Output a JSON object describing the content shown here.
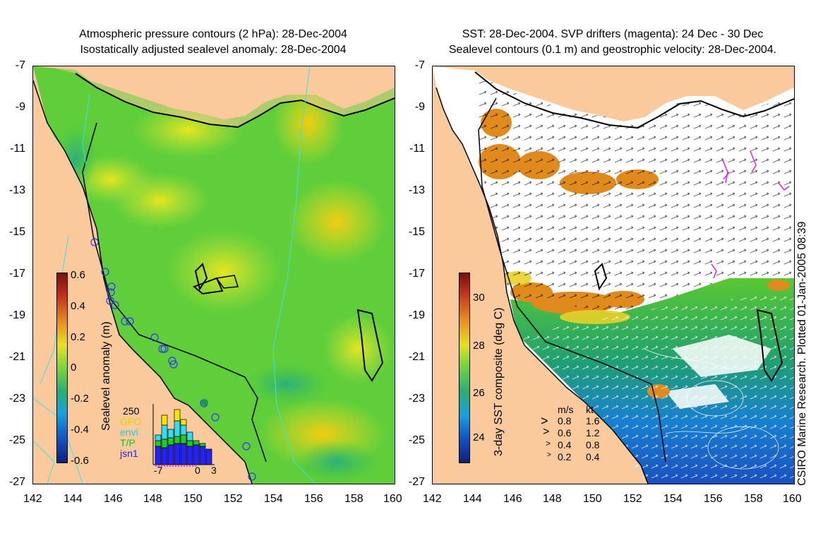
{
  "left_panel": {
    "title_line1": "Atmospheric pressure contours (2 hPa): 28-Dec-2004",
    "title_line2": "Isostatically adjusted sealevel anomaly: 28-Dec-2004",
    "colorbar_label": "Sealevel anomaly (m)",
    "colorbar_ticks": [
      "0.6",
      "0.4",
      "0.2",
      "0",
      "-0.2",
      "-0.4",
      "-0.6"
    ],
    "inset": {
      "ymax_label": "250",
      "x_ticks": [
        "-7",
        "0",
        "3"
      ],
      "legend": [
        {
          "label": "GFO",
          "color": "#ffe400"
        },
        {
          "label": "envi",
          "color": "#33ddee"
        },
        {
          "label": "T/P",
          "color": "#22cc22"
        },
        {
          "label": "jsn1",
          "color": "#2222ff"
        }
      ]
    }
  },
  "right_panel": {
    "title_line1": "SST: 28-Dec-2004. SVP drifters (magenta): 24 Dec - 30 Dec",
    "title_line2": "Sealevel contours (0.1 m) and geostrophic velocity: 28-Dec-2004.",
    "colorbar_label": "3-day SST composite (deg C)",
    "colorbar_ticks": [
      "30",
      "28",
      "26",
      "24"
    ],
    "velocity_legend": {
      "header_ms": "m/s",
      "header_kt": "kt",
      "rows": [
        {
          "ms": "0.8",
          "kt": "1.6"
        },
        {
          "ms": "0.6",
          "kt": "1.2"
        },
        {
          "ms": "0.4",
          "kt": "0.8"
        },
        {
          "ms": "0.2",
          "kt": "0.4"
        }
      ]
    },
    "credit": "CSIRO Marine Research. Plotted 01-Jan-2005 08:39"
  },
  "axes": {
    "left_x_ticks": [
      "142",
      "144",
      "146",
      "148",
      "150",
      "152",
      "154",
      "156",
      "158",
      "160"
    ],
    "right_x_ticks": [
      "142",
      "144",
      "146",
      "148",
      "150",
      "152",
      "154",
      "156",
      "158",
      "160"
    ],
    "y_ticks": [
      "-7",
      "-9",
      "-11",
      "-13",
      "-15",
      "-17",
      "-19",
      "-21",
      "-23",
      "-25",
      "-27"
    ]
  },
  "colors": {
    "land": "#fac99c",
    "sealevel_base": "#5fce3a",
    "sst_warm": "#e08a1e",
    "drifter": "#e020e0",
    "contour_cyan": "#40e0e0"
  }
}
